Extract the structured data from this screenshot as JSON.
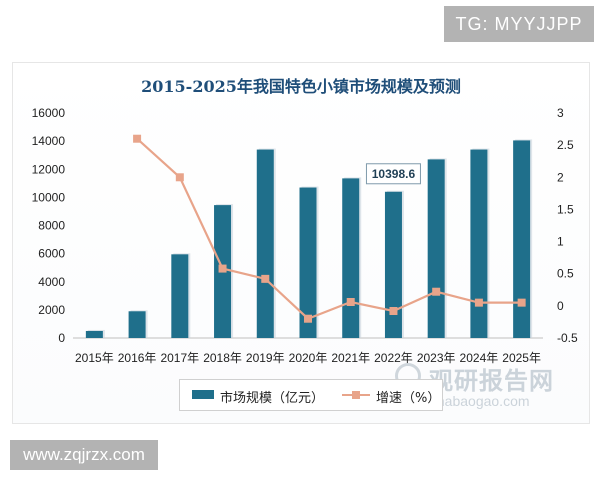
{
  "tg_badge": "TG: MYYJJPP",
  "site_badge": "www.zqjrzx.com",
  "watermark": {
    "cn": "观研报告网",
    "url": "chinabaogao.com"
  },
  "chart_data": {
    "type": "bar",
    "title": "2015-2025年我国特色小镇市场规模及预测",
    "categories": [
      "2015年",
      "2016年",
      "2017年",
      "2018年",
      "2019年",
      "2020年",
      "2021年",
      "2022年",
      "2023年",
      "2024年",
      "2025年"
    ],
    "series": [
      {
        "name": "市场规模（亿元）",
        "type": "bar",
        "axis": "left",
        "color": "#1f6f8b",
        "values": [
          500,
          1900,
          5950,
          9450,
          13400,
          10700,
          11350,
          10398.6,
          12700,
          13400,
          14050
        ]
      },
      {
        "name": "增速（%）",
        "type": "line",
        "axis": "right",
        "color": "#e8a48a",
        "values": [
          null,
          2.6,
          2.0,
          0.58,
          0.42,
          -0.2,
          0.06,
          -0.08,
          0.22,
          0.05,
          0.05
        ]
      }
    ],
    "y_left": {
      "min": 0,
      "max": 16000,
      "ticks": [
        "0",
        "2000",
        "4000",
        "6000",
        "8000",
        "10000",
        "12000",
        "14000",
        "16000"
      ]
    },
    "y_right": {
      "min": -0.5,
      "max": 3,
      "ticks": [
        "-0.5",
        "0",
        "0.5",
        "1",
        "1.5",
        "2",
        "2.5",
        "3"
      ]
    },
    "annotation": {
      "label": "10398.6",
      "category_index": 7
    },
    "legend": {
      "position": "bottom",
      "bar_label": "市场规模（亿元）",
      "line_label": "增速（%）"
    }
  }
}
